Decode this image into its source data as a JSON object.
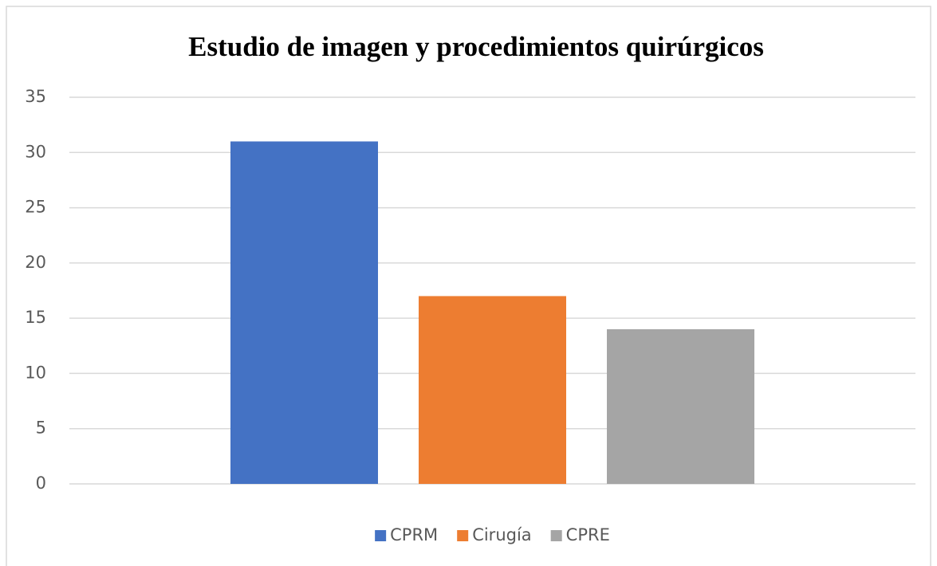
{
  "chart_data": {
    "type": "bar",
    "title": "Estudio de imagen y procedimientos quirúrgicos",
    "categories": [
      null
    ],
    "series": [
      {
        "name": "CPRM",
        "color": "#4472c4",
        "values": [
          31
        ]
      },
      {
        "name": "Cirugía",
        "color": "#ed7d31",
        "values": [
          17
        ]
      },
      {
        "name": "CPRE",
        "color": "#a5a5a5",
        "values": [
          14
        ]
      }
    ],
    "ylim": [
      0,
      35
    ],
    "yticks": [
      0,
      5,
      10,
      15,
      20,
      25,
      30,
      35
    ],
    "grid": true,
    "legend": "bottom"
  }
}
